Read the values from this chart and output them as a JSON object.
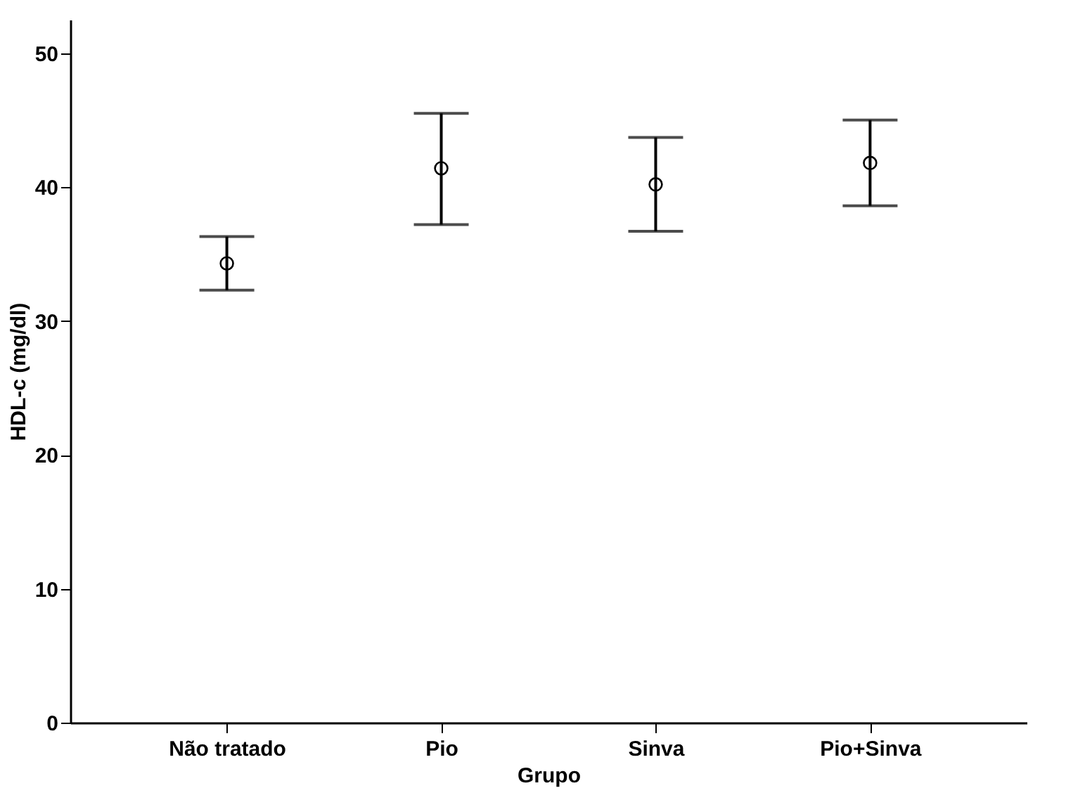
{
  "chart_data": {
    "type": "scatter",
    "xlabel": "Grupo",
    "ylabel": "HDL-c (mg/dl)",
    "categories": [
      "Não tratado",
      "Pio",
      "Sinva",
      "Pio+Sinva"
    ],
    "values": [
      34.3,
      41.4,
      40.2,
      41.8
    ],
    "errors": [
      [
        32.3,
        36.3
      ],
      [
        37.2,
        45.5
      ],
      [
        36.7,
        43.7
      ],
      [
        38.6,
        45.0
      ]
    ],
    "color": "#000000",
    "marker": "circle",
    "ylim": [
      0,
      52.5
    ],
    "yticks": [
      0,
      10,
      20,
      30,
      40,
      50
    ],
    "grid": false
  }
}
